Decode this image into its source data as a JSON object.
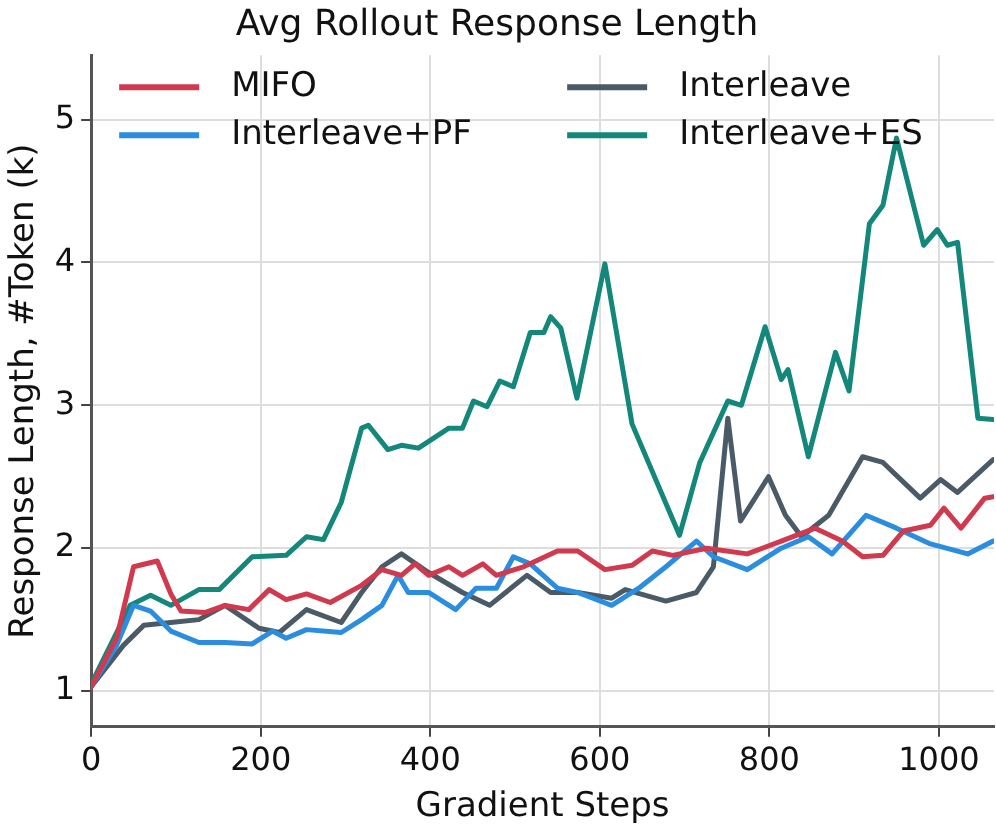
{
  "chart_data": {
    "type": "line",
    "title": "Avg Rollout Response Length",
    "xlabel": "Gradient Steps",
    "ylabel": "Response Length, #Token (k)",
    "xlim": [
      0,
      1065
    ],
    "xticks": [
      0,
      200,
      400,
      600,
      800,
      1000
    ],
    "ylim": [
      0.75,
      5.45
    ],
    "yticks": [
      1,
      2,
      3,
      4,
      5
    ],
    "grid": true,
    "legend": "top",
    "marker": "none",
    "line_style": "solid",
    "series": [
      {
        "name": "MIFO",
        "color": "#d1394f",
        "x": [
          0,
          30,
          50,
          78,
          94,
          106,
          134,
          158,
          186,
          210,
          230,
          254,
          282,
          319,
          343,
          366,
          382,
          398,
          422,
          438,
          462,
          478,
          510,
          550,
          574,
          606,
          638,
          662,
          686,
          726,
          774,
          814,
          854,
          886,
          910,
          934,
          958,
          990,
          1006,
          1026,
          1054,
          1064
        ],
        "values": [
          1.03,
          1.37,
          1.87,
          1.91,
          1.68,
          1.56,
          1.55,
          1.6,
          1.57,
          1.71,
          1.64,
          1.68,
          1.62,
          1.74,
          1.85,
          1.81,
          1.89,
          1.81,
          1.87,
          1.81,
          1.89,
          1.81,
          1.87,
          1.98,
          1.98,
          1.85,
          1.88,
          1.98,
          1.95,
          2.0,
          1.96,
          2.05,
          2.14,
          2.05,
          1.94,
          1.95,
          2.12,
          2.16,
          2.28,
          2.14,
          2.35,
          2.36
        ]
      },
      {
        "name": "Interleave+PF",
        "color": "#2a8de0",
        "x": [
          0,
          30,
          50,
          70,
          94,
          127,
          158,
          190,
          214,
          230,
          254,
          295,
          319,
          343,
          362,
          374,
          398,
          430,
          454,
          478,
          498,
          518,
          550,
          574,
          614,
          646,
          678,
          714,
          734,
          774,
          814,
          846,
          874,
          914,
          950,
          990,
          1034,
          1064
        ],
        "values": [
          1.03,
          1.32,
          1.6,
          1.56,
          1.42,
          1.34,
          1.34,
          1.33,
          1.42,
          1.37,
          1.43,
          1.41,
          1.5,
          1.6,
          1.81,
          1.69,
          1.69,
          1.57,
          1.72,
          1.72,
          1.94,
          1.89,
          1.72,
          1.69,
          1.6,
          1.72,
          1.87,
          2.05,
          1.94,
          1.85,
          2.0,
          2.08,
          1.96,
          2.23,
          2.14,
          2.03,
          1.96,
          2.05
        ]
      },
      {
        "name": "Interleave",
        "color": "#4a5a66",
        "x": [
          0,
          38,
          62,
          94,
          127,
          158,
          198,
          222,
          254,
          295,
          319,
          343,
          366,
          398,
          438,
          470,
          514,
          542,
          574,
          614,
          630,
          678,
          714,
          734,
          751,
          766,
          799,
          819,
          838,
          870,
          910,
          934,
          978,
          1002,
          1022,
          1064
        ],
        "values": [
          1.03,
          1.32,
          1.46,
          1.48,
          1.5,
          1.6,
          1.44,
          1.41,
          1.57,
          1.48,
          1.69,
          1.87,
          1.96,
          1.83,
          1.69,
          1.6,
          1.81,
          1.69,
          1.69,
          1.65,
          1.71,
          1.63,
          1.69,
          1.87,
          2.91,
          2.19,
          2.5,
          2.23,
          2.08,
          2.23,
          2.64,
          2.6,
          2.35,
          2.48,
          2.39,
          2.62
        ]
      },
      {
        "name": "Interleave+ES",
        "color": "#12877a",
        "x": [
          0,
          46,
          70,
          94,
          127,
          151,
          190,
          230,
          254,
          274,
          295,
          319,
          327,
          350,
          366,
          386,
          422,
          438,
          451,
          467,
          482,
          498,
          518,
          534,
          542,
          554,
          573,
          606,
          638,
          694,
          718,
          751,
          767,
          795,
          814,
          822,
          846,
          878,
          894,
          918,
          934,
          950,
          982,
          998,
          1010,
          1022,
          1046,
          1064
        ],
        "values": [
          1.05,
          1.6,
          1.67,
          1.6,
          1.71,
          1.71,
          1.94,
          1.95,
          2.08,
          2.06,
          2.32,
          2.84,
          2.86,
          2.69,
          2.72,
          2.7,
          2.84,
          2.84,
          3.03,
          2.99,
          3.17,
          3.13,
          3.51,
          3.51,
          3.62,
          3.54,
          3.05,
          3.99,
          2.87,
          2.09,
          2.6,
          3.03,
          3.0,
          3.55,
          3.18,
          3.25,
          2.64,
          3.37,
          3.1,
          4.27,
          4.4,
          4.87,
          4.12,
          4.23,
          4.12,
          4.14,
          2.91,
          2.9
        ]
      }
    ]
  }
}
